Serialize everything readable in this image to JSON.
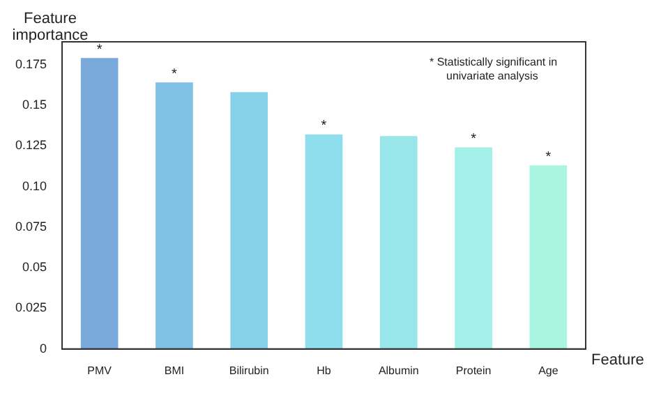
{
  "chart_data": {
    "type": "bar",
    "xlabel": "Feature",
    "ylabel": "Feature importance",
    "categories": [
      "PMV",
      "BMI",
      "Bilirubin",
      "Hb",
      "Albumin",
      "Protein",
      "Age"
    ],
    "values": [
      0.179,
      0.164,
      0.158,
      0.132,
      0.131,
      0.124,
      0.113
    ],
    "colors": [
      "#7aaadb",
      "#7fc0e4",
      "#86d0ea",
      "#8fdeee",
      "#98e6ea",
      "#a2f0e8",
      "#aaf5e0"
    ],
    "ylim": [
      0,
      0.189
    ],
    "yticks": [
      0,
      0.025,
      0.05,
      0.075,
      {
        "value": 0.1,
        "label": "0.10"
      },
      0.125,
      0.15,
      0.175
    ],
    "grid": false,
    "legend": false,
    "annotations": [
      "* Statistically significant in univariate analysis",
      {
        "text": "*",
        "x": "PMV",
        "y": 0.179
      },
      {
        "text": "*",
        "x": "BMI",
        "y": 0.164
      },
      {
        "text": "*",
        "x": "Hb",
        "y": 0.132
      },
      {
        "text": "*",
        "x": "Protein",
        "y": 0.124
      },
      {
        "text": "*",
        "x": "Age",
        "y": 0.113
      }
    ]
  }
}
